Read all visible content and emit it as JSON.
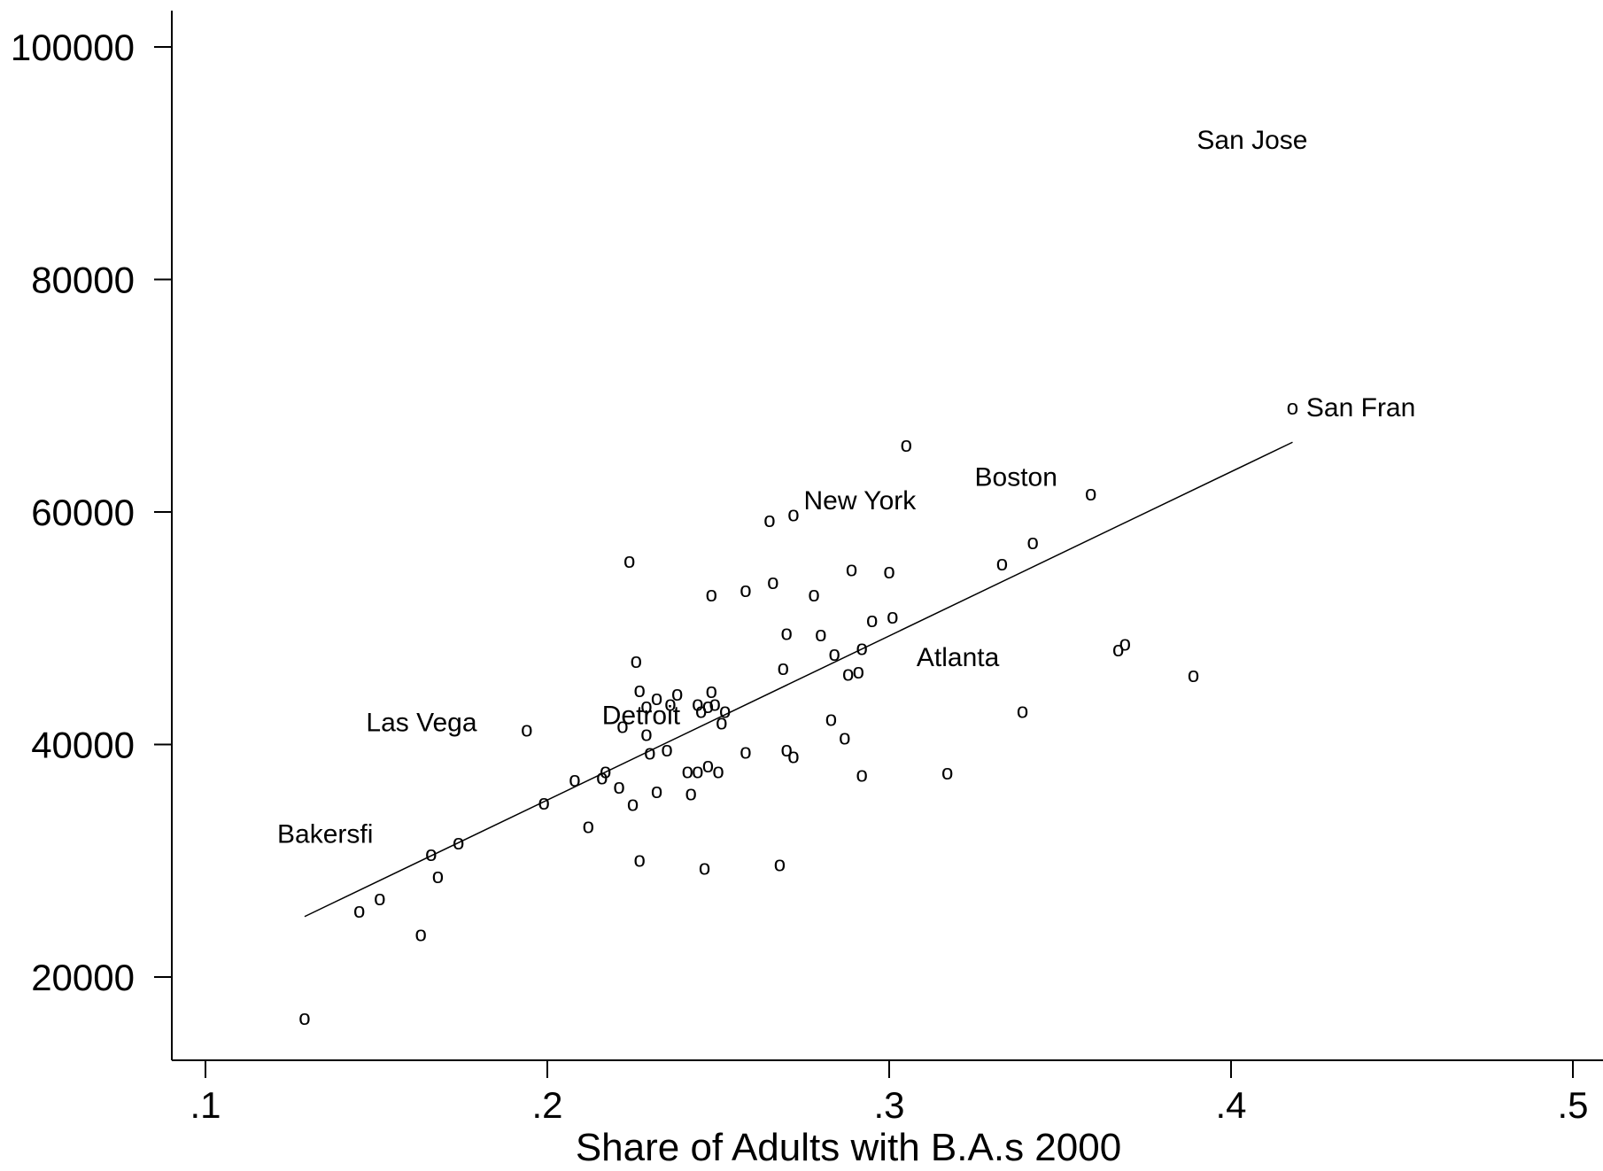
{
  "chart_data": {
    "type": "scatter",
    "title": "",
    "xlabel": "Share of Adults with B.A.s 2000",
    "ylabel": "",
    "xlim": [
      0.09,
      0.5
    ],
    "ylim": [
      12000,
      103000
    ],
    "xticks": [
      0.1,
      0.2,
      0.3,
      0.4,
      0.5
    ],
    "xtick_labels": [
      ".1",
      ".2",
      ".3",
      ".4",
      ".5"
    ],
    "yticks": [
      20000,
      40000,
      60000,
      80000,
      100000
    ],
    "ytick_labels": [
      "20000",
      "40000",
      "60000",
      "80000",
      "100000"
    ],
    "grid": false,
    "legend": "none",
    "marker_symbol": "o",
    "fit_line": {
      "x": [
        0.129,
        0.418
      ],
      "y": [
        25200,
        66000
      ]
    },
    "labeled_points": [
      {
        "label": "San Jose",
        "x": 0.39,
        "y": 92000
      },
      {
        "label": "San Fran",
        "x": 0.422,
        "y": 69000
      },
      {
        "label": "Boston",
        "x": 0.325,
        "y": 63000
      },
      {
        "label": "New York",
        "x": 0.275,
        "y": 61000
      },
      {
        "label": "Atlanta",
        "x": 0.308,
        "y": 47500
      },
      {
        "label": "Detroit",
        "x": 0.216,
        "y": 42500
      },
      {
        "label": "Las Vega",
        "x": 0.147,
        "y": 41900
      },
      {
        "label": "Bakersfi",
        "x": 0.121,
        "y": 32300
      }
    ],
    "points": [
      {
        "x": 0.129,
        "y": 16500
      },
      {
        "x": 0.145,
        "y": 25700
      },
      {
        "x": 0.151,
        "y": 26800
      },
      {
        "x": 0.163,
        "y": 23700
      },
      {
        "x": 0.166,
        "y": 30600
      },
      {
        "x": 0.168,
        "y": 28700
      },
      {
        "x": 0.174,
        "y": 31600
      },
      {
        "x": 0.194,
        "y": 41300
      },
      {
        "x": 0.199,
        "y": 35000
      },
      {
        "x": 0.208,
        "y": 37000
      },
      {
        "x": 0.212,
        "y": 33000
      },
      {
        "x": 0.216,
        "y": 37200
      },
      {
        "x": 0.217,
        "y": 37700
      },
      {
        "x": 0.221,
        "y": 36400
      },
      {
        "x": 0.222,
        "y": 41600
      },
      {
        "x": 0.224,
        "y": 55800
      },
      {
        "x": 0.225,
        "y": 34900
      },
      {
        "x": 0.226,
        "y": 47200
      },
      {
        "x": 0.227,
        "y": 44700
      },
      {
        "x": 0.227,
        "y": 30100
      },
      {
        "x": 0.229,
        "y": 43300
      },
      {
        "x": 0.229,
        "y": 40900
      },
      {
        "x": 0.23,
        "y": 39300
      },
      {
        "x": 0.232,
        "y": 44000
      },
      {
        "x": 0.232,
        "y": 36000
      },
      {
        "x": 0.235,
        "y": 39600
      },
      {
        "x": 0.236,
        "y": 43500
      },
      {
        "x": 0.238,
        "y": 44400
      },
      {
        "x": 0.241,
        "y": 37700
      },
      {
        "x": 0.242,
        "y": 35800
      },
      {
        "x": 0.244,
        "y": 37700
      },
      {
        "x": 0.244,
        "y": 43500
      },
      {
        "x": 0.245,
        "y": 42900
      },
      {
        "x": 0.246,
        "y": 29400
      },
      {
        "x": 0.247,
        "y": 38200
      },
      {
        "x": 0.247,
        "y": 43300
      },
      {
        "x": 0.248,
        "y": 44600
      },
      {
        "x": 0.248,
        "y": 52900
      },
      {
        "x": 0.249,
        "y": 43500
      },
      {
        "x": 0.25,
        "y": 37700
      },
      {
        "x": 0.251,
        "y": 41900
      },
      {
        "x": 0.252,
        "y": 42900
      },
      {
        "x": 0.258,
        "y": 53300
      },
      {
        "x": 0.258,
        "y": 39400
      },
      {
        "x": 0.265,
        "y": 59300
      },
      {
        "x": 0.266,
        "y": 54000
      },
      {
        "x": 0.268,
        "y": 29700
      },
      {
        "x": 0.269,
        "y": 46600
      },
      {
        "x": 0.27,
        "y": 49600
      },
      {
        "x": 0.27,
        "y": 39600
      },
      {
        "x": 0.272,
        "y": 39000
      },
      {
        "x": 0.272,
        "y": 59800
      },
      {
        "x": 0.278,
        "y": 52900
      },
      {
        "x": 0.28,
        "y": 49500
      },
      {
        "x": 0.283,
        "y": 42200
      },
      {
        "x": 0.284,
        "y": 47800
      },
      {
        "x": 0.287,
        "y": 40600
      },
      {
        "x": 0.288,
        "y": 46100
      },
      {
        "x": 0.289,
        "y": 55100
      },
      {
        "x": 0.291,
        "y": 46300
      },
      {
        "x": 0.292,
        "y": 48300
      },
      {
        "x": 0.292,
        "y": 37400
      },
      {
        "x": 0.295,
        "y": 50700
      },
      {
        "x": 0.3,
        "y": 54900
      },
      {
        "x": 0.301,
        "y": 51000
      },
      {
        "x": 0.305,
        "y": 65800
      },
      {
        "x": 0.317,
        "y": 37600
      },
      {
        "x": 0.333,
        "y": 55600
      },
      {
        "x": 0.339,
        "y": 42900
      },
      {
        "x": 0.342,
        "y": 57400
      },
      {
        "x": 0.359,
        "y": 61600
      },
      {
        "x": 0.367,
        "y": 48200
      },
      {
        "x": 0.369,
        "y": 48700
      },
      {
        "x": 0.389,
        "y": 46000
      },
      {
        "x": 0.418,
        "y": 69000
      }
    ]
  }
}
